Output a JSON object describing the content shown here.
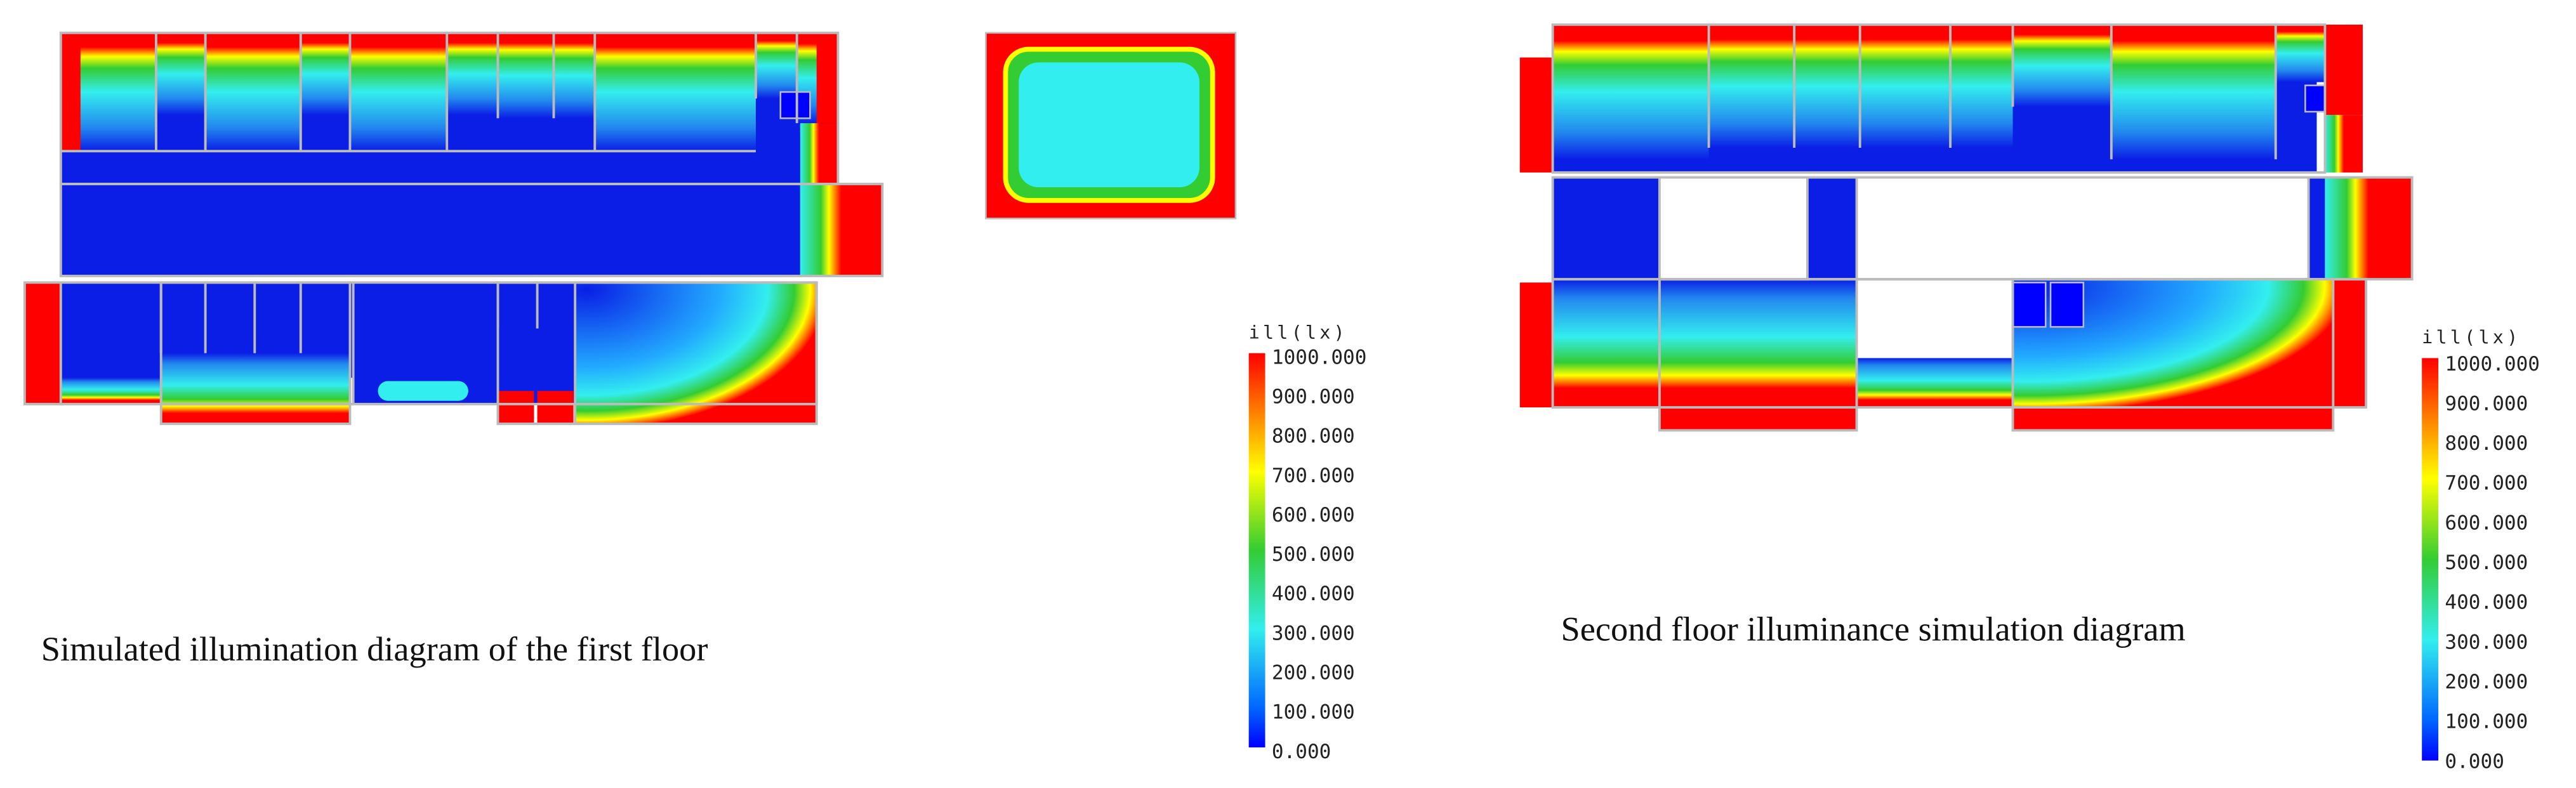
{
  "first_floor": {
    "caption": "Simulated illumination diagram of the first floor",
    "legend": {
      "title": "ill(lx)",
      "ticks": [
        "1000.000",
        "900.000",
        "800.000",
        "700.000",
        "600.000",
        "500.000",
        "400.000",
        "300.000",
        "200.000",
        "100.000",
        "0.000"
      ]
    }
  },
  "second_floor": {
    "caption": "Second floor illuminance simulation diagram",
    "legend": {
      "title": "ill(lx)",
      "ticks": [
        "1000.000",
        "900.000",
        "800.000",
        "700.000",
        "600.000",
        "500.000",
        "400.000",
        "300.000",
        "200.000",
        "100.000",
        "0.000"
      ]
    }
  }
}
